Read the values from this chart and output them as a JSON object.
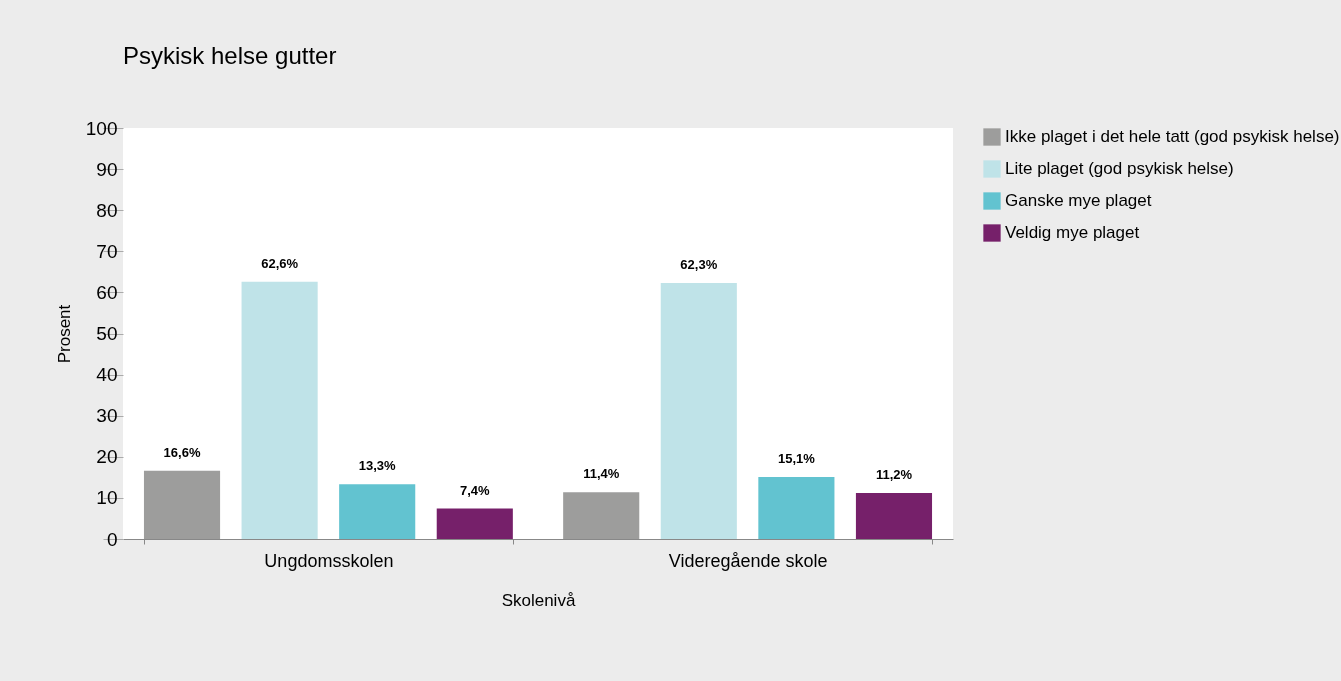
{
  "chart_data": {
    "type": "bar",
    "title": "Psykisk helse gutter",
    "xlabel": "Skolenivå",
    "ylabel": "Prosent",
    "categories": [
      "Ungdomsskolen",
      "Videregående skole"
    ],
    "series": [
      {
        "name": "Ikke plaget i det hele tatt (god psykisk helse)",
        "color": "#9d9d9c",
        "values": [
          16.6,
          11.4
        ],
        "value_labels": [
          "16,6%",
          "11,4%"
        ]
      },
      {
        "name": "Lite plaget (god psykisk helse)",
        "color": "#bfe3e8",
        "values": [
          62.6,
          62.3
        ],
        "value_labels": [
          "62,6%",
          "62,3%"
        ]
      },
      {
        "name": "Ganske mye plaget",
        "color": "#62c3d0",
        "values": [
          13.3,
          15.1
        ],
        "value_labels": [
          "13,3%",
          "15,1%"
        ]
      },
      {
        "name": "Veldig mye plaget",
        "color": "#76206a",
        "values": [
          7.4,
          11.2
        ],
        "value_labels": [
          "7,4%",
          "11,2%"
        ]
      }
    ],
    "ylim": [
      0,
      100
    ],
    "yticks": [
      0,
      10,
      20,
      30,
      40,
      50,
      60,
      70,
      80,
      90,
      100
    ],
    "grid": false,
    "legend": "right"
  }
}
